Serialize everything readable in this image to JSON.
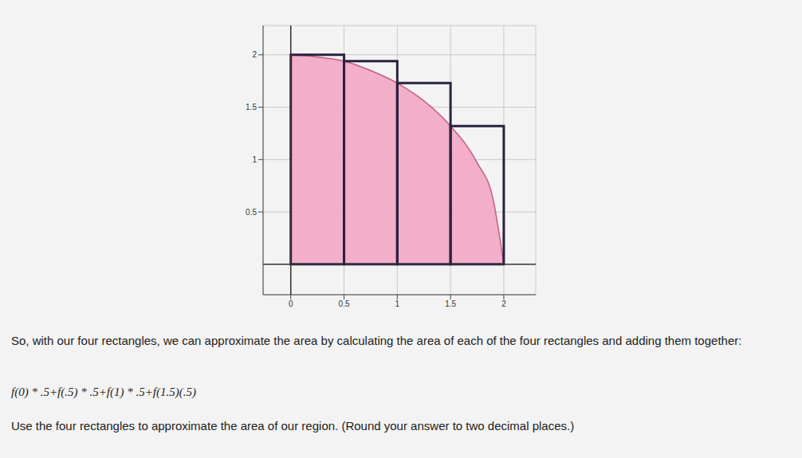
{
  "chart_data": {
    "type": "area",
    "x": [
      0,
      0.25,
      0.5,
      0.75,
      1,
      1.25,
      1.5,
      1.75,
      1.9,
      2
    ],
    "values": [
      2,
      1.98,
      1.94,
      1.85,
      1.73,
      1.56,
      1.32,
      0.97,
      0.62,
      0
    ],
    "color": "#f3a6c4",
    "xlim": [
      -0.26,
      2.3
    ],
    "ylim": [
      -0.29,
      2.28
    ],
    "xticks": [
      0,
      0.5,
      1,
      1.5,
      2
    ],
    "yticks": [
      0.5,
      1,
      1.5,
      2
    ],
    "grid": true,
    "rectangles": {
      "x": [
        0,
        0.5,
        1,
        1.5
      ],
      "width": 0.5,
      "heights": [
        2,
        1.94,
        1.73,
        1.32
      ]
    }
  },
  "text": {
    "paragraph": "So, with our four rectangles, we can approximate the area by calculating the area of each of the four rectangles and adding them together:",
    "formula": "f(0) * .5+f(.5) * .5+f(1) * .5+f(1.5)(.5)",
    "question": "Use the four rectangles to approximate the area of our region. (Round your answer to two decimal places.)"
  }
}
